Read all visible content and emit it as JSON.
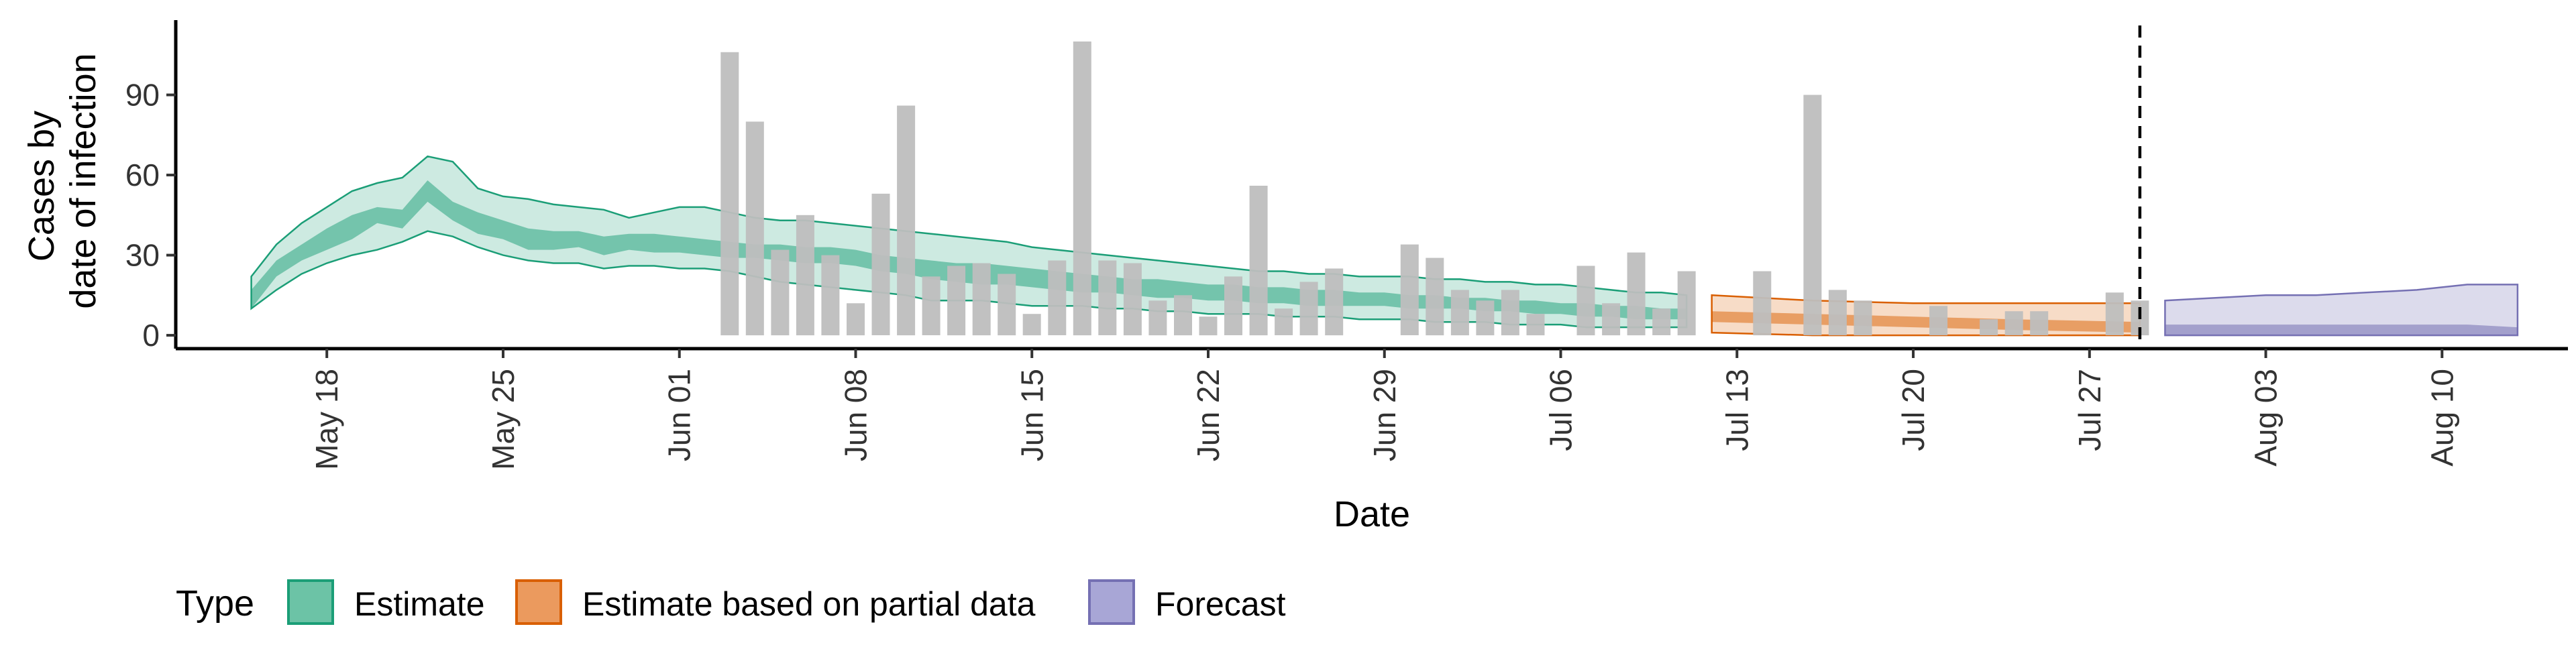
{
  "chart_data": {
    "type": "area",
    "xlabel": "Date",
    "ylabel_lines": [
      "Cases by",
      "date of infection"
    ],
    "x_start": "2020-05-15",
    "x_ticks": [
      "May 18",
      "May 25",
      "Jun 01",
      "Jun 08",
      "Jun 15",
      "Jun 22",
      "Jun 29",
      "Jul 06",
      "Jul 13",
      "Jul 20",
      "Jul 27",
      "Aug 03",
      "Aug 10"
    ],
    "y_ticks": [
      0,
      30,
      60,
      90
    ],
    "ylim": [
      -5,
      118
    ],
    "xlim": [
      "2020-05-12",
      "2020-08-15"
    ],
    "forecast_date": "2020-07-29",
    "legend": {
      "title": "Type",
      "position": "bottom",
      "items": [
        {
          "label": "Estimate",
          "fill": "#6cc3a6",
          "stroke": "#1b9e77"
        },
        {
          "label": "Estimate based on partial data",
          "fill": "#eb9a5e",
          "stroke": "#d95f02"
        },
        {
          "label": "Forecast",
          "fill": "#a8a6d6",
          "stroke": "#7570b3"
        }
      ]
    },
    "colors": {
      "bars": "#bebebe",
      "estimate_outer": "#1b9e77",
      "partial_outer": "#d95f02",
      "forecast_outer": "#7570b3",
      "vline": "#000000"
    },
    "observed_cases": {
      "dates": [
        "2020-06-03",
        "2020-06-04",
        "2020-06-05",
        "2020-06-06",
        "2020-06-07",
        "2020-06-08",
        "2020-06-09",
        "2020-06-10",
        "2020-06-11",
        "2020-06-12",
        "2020-06-13",
        "2020-06-14",
        "2020-06-15",
        "2020-06-16",
        "2020-06-17",
        "2020-06-18",
        "2020-06-19",
        "2020-06-20",
        "2020-06-21",
        "2020-06-22",
        "2020-06-23",
        "2020-06-24",
        "2020-06-25",
        "2020-06-26",
        "2020-06-27",
        "2020-06-30",
        "2020-07-01",
        "2020-07-02",
        "2020-07-03",
        "2020-07-04",
        "2020-07-05",
        "2020-07-07",
        "2020-07-08",
        "2020-07-09",
        "2020-07-10",
        "2020-07-11",
        "2020-07-14",
        "2020-07-16",
        "2020-07-17",
        "2020-07-18",
        "2020-07-21",
        "2020-07-23",
        "2020-07-24",
        "2020-07-25",
        "2020-07-28",
        "2020-07-29"
      ],
      "values": [
        106,
        80,
        32,
        45,
        30,
        12,
        53,
        86,
        22,
        26,
        27,
        23,
        8,
        28,
        110,
        28,
        27,
        13,
        15,
        7,
        22,
        56,
        10,
        20,
        25,
        34,
        29,
        17,
        13,
        17,
        8,
        26,
        12,
        31,
        10,
        24,
        24,
        90,
        17,
        13,
        11,
        6,
        9,
        9,
        16,
        13
      ]
    },
    "estimate": {
      "dates": [
        "2020-05-15",
        "2020-05-16",
        "2020-05-17",
        "2020-05-18",
        "2020-05-19",
        "2020-05-20",
        "2020-05-21",
        "2020-05-22",
        "2020-05-23",
        "2020-05-24",
        "2020-05-25",
        "2020-05-26",
        "2020-05-27",
        "2020-05-28",
        "2020-05-29",
        "2020-05-30",
        "2020-05-31",
        "2020-06-01",
        "2020-06-02",
        "2020-06-03",
        "2020-06-04",
        "2020-06-05",
        "2020-06-06",
        "2020-06-07",
        "2020-06-08",
        "2020-06-09",
        "2020-06-10",
        "2020-06-11",
        "2020-06-12",
        "2020-06-13",
        "2020-06-14",
        "2020-06-15",
        "2020-06-16",
        "2020-06-17",
        "2020-06-18",
        "2020-06-19",
        "2020-06-20",
        "2020-06-21",
        "2020-06-22",
        "2020-06-23",
        "2020-06-24",
        "2020-06-25",
        "2020-06-26",
        "2020-06-27",
        "2020-06-28",
        "2020-06-29",
        "2020-06-30",
        "2020-07-01",
        "2020-07-02",
        "2020-07-03",
        "2020-07-04",
        "2020-07-05",
        "2020-07-06",
        "2020-07-07",
        "2020-07-08",
        "2020-07-09",
        "2020-07-10",
        "2020-07-11"
      ],
      "lower90": [
        10,
        17,
        23,
        27,
        30,
        32,
        35,
        39,
        37,
        33,
        30,
        28,
        27,
        27,
        25,
        26,
        26,
        25,
        25,
        24,
        22,
        20,
        19,
        18,
        17,
        16,
        15,
        13,
        13,
        13,
        12,
        11,
        11,
        11,
        10,
        10,
        9,
        9,
        8,
        8,
        8,
        7,
        7,
        7,
        6,
        6,
        6,
        5,
        5,
        5,
        4,
        4,
        4,
        3,
        3,
        3,
        3,
        3
      ],
      "lower50": [
        10,
        22,
        28,
        32,
        36,
        42,
        40,
        50,
        43,
        38,
        36,
        32,
        32,
        33,
        30,
        32,
        31,
        31,
        30,
        29,
        29,
        28,
        27,
        27,
        26,
        24,
        23,
        21,
        20,
        19,
        19,
        18,
        17,
        16,
        16,
        15,
        14,
        14,
        13,
        13,
        12,
        12,
        11,
        11,
        11,
        11,
        10,
        10,
        10,
        9,
        9,
        8,
        8,
        7,
        7,
        6,
        6,
        6
      ],
      "upper50": [
        17,
        28,
        34,
        40,
        45,
        48,
        47,
        58,
        50,
        46,
        43,
        40,
        39,
        39,
        37,
        38,
        38,
        37,
        36,
        35,
        34,
        34,
        33,
        33,
        32,
        30,
        29,
        28,
        27,
        27,
        26,
        25,
        24,
        23,
        22,
        21,
        21,
        20,
        19,
        19,
        18,
        18,
        17,
        17,
        16,
        16,
        15,
        15,
        14,
        14,
        13,
        13,
        12,
        12,
        11,
        11,
        10,
        10
      ],
      "upper90": [
        22,
        34,
        42,
        48,
        54,
        57,
        59,
        67,
        65,
        55,
        52,
        51,
        49,
        48,
        47,
        44,
        46,
        48,
        48,
        46,
        44,
        43,
        43,
        42,
        41,
        40,
        39,
        38,
        37,
        36,
        35,
        33,
        32,
        31,
        30,
        29,
        28,
        27,
        26,
        25,
        24,
        24,
        23,
        23,
        22,
        22,
        22,
        21,
        21,
        20,
        20,
        19,
        19,
        18,
        17,
        16,
        16,
        15
      ]
    },
    "partial": {
      "dates": [
        "2020-07-12",
        "2020-07-16",
        "2020-07-20",
        "2020-07-24",
        "2020-07-29"
      ],
      "lower90": [
        1,
        0,
        0,
        0,
        0
      ],
      "lower50": [
        5,
        4,
        3,
        2,
        1
      ],
      "upper50": [
        9,
        8,
        7,
        6,
        5
      ],
      "upper90": [
        15,
        13,
        12,
        12,
        12
      ]
    },
    "forecast": {
      "dates": [
        "2020-07-30",
        "2020-08-01",
        "2020-08-03",
        "2020-08-05",
        "2020-08-07",
        "2020-08-09",
        "2020-08-11",
        "2020-08-13"
      ],
      "lower90": [
        0,
        0,
        0,
        0,
        0,
        0,
        0,
        0
      ],
      "lower50": [
        0,
        0,
        0,
        0,
        0,
        0,
        0,
        0
      ],
      "upper50": [
        4,
        4,
        4,
        4,
        4,
        4,
        4,
        3
      ],
      "upper90": [
        13,
        14,
        15,
        15,
        16,
        17,
        19,
        19
      ]
    }
  }
}
